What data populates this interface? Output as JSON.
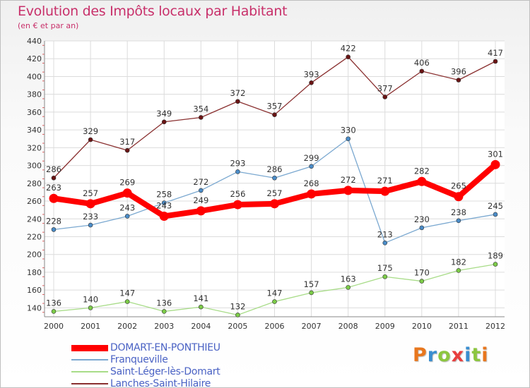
{
  "header": {
    "title": "Evolution des Impôts locaux par Habitant",
    "subtitle": "(en € et par an)"
  },
  "logo": {
    "text": "Proxiti",
    "letter_colors": [
      "#e8771e",
      "#3a8ed0",
      "#8cc63f",
      "#e83e3e",
      "#3a8ed0",
      "#8cc63f",
      "#e8771e"
    ]
  },
  "chart_data": {
    "type": "line",
    "title": "Evolution des Impôts locaux par Habitant",
    "subtitle": "(en € et par an)",
    "xlabel": "",
    "ylabel": "",
    "x": [
      "2000",
      "2001",
      "2002",
      "2003",
      "2004",
      "2005",
      "2006",
      "2007",
      "2008",
      "2009",
      "2010",
      "2011",
      "2012"
    ],
    "ylim": [
      130,
      440
    ],
    "yticks": [
      140,
      160,
      180,
      200,
      220,
      240,
      260,
      280,
      300,
      320,
      340,
      360,
      380,
      400,
      420,
      440
    ],
    "grid": true,
    "legend_position": "bottom-left",
    "series": [
      {
        "name": "DOMART-EN-PONTHIEU",
        "color": "#ff0000",
        "marker_color": "#ff0000",
        "emphasis": "thick",
        "values": [
          263,
          257,
          269,
          243,
          249,
          256,
          257,
          268,
          272,
          271,
          282,
          265,
          301
        ]
      },
      {
        "name": "Franqueville",
        "color": "#7aa8d0",
        "marker_color": "#4a8cc8",
        "emphasis": "thin",
        "values": [
          228,
          233,
          243,
          258,
          272,
          293,
          286,
          299,
          330,
          213,
          230,
          238,
          245
        ]
      },
      {
        "name": "Saint-Léger-lès-Domart",
        "color": "#a8dc88",
        "marker_color": "#7ccc48",
        "emphasis": "thin",
        "values": [
          136,
          140,
          147,
          136,
          141,
          132,
          147,
          157,
          163,
          175,
          170,
          182,
          189
        ]
      },
      {
        "name": "Lanches-Saint-Hilaire",
        "color": "#8a3030",
        "marker_color": "#6a1414",
        "emphasis": "thin",
        "values": [
          286,
          329,
          317,
          349,
          354,
          372,
          357,
          393,
          422,
          377,
          406,
          396,
          417
        ]
      }
    ]
  }
}
